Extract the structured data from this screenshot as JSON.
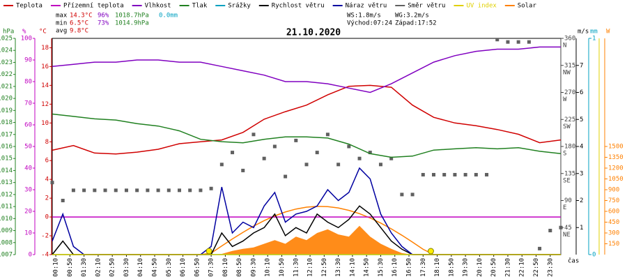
{
  "chart_data": {
    "type": "line",
    "title": "21.10.2020",
    "x_label": "čas",
    "xlim": [
      0,
      1440
    ],
    "xticks": [
      {
        "value": 10,
        "label": "00:10"
      },
      {
        "value": 50,
        "label": "00:50"
      },
      {
        "value": 90,
        "label": "01:30"
      },
      {
        "value": 130,
        "label": "02:10"
      },
      {
        "value": 170,
        "label": "02:50"
      },
      {
        "value": 210,
        "label": "03:30"
      },
      {
        "value": 250,
        "label": "04:10"
      },
      {
        "value": 290,
        "label": "04:50"
      },
      {
        "value": 330,
        "label": "05:30"
      },
      {
        "value": 370,
        "label": "06:10"
      },
      {
        "value": 410,
        "label": "06:50"
      },
      {
        "value": 450,
        "label": "07:30"
      },
      {
        "value": 490,
        "label": "08:10"
      },
      {
        "value": 530,
        "label": "08:50"
      },
      {
        "value": 570,
        "label": "09:30"
      },
      {
        "value": 610,
        "label": "10:10"
      },
      {
        "value": 650,
        "label": "10:50"
      },
      {
        "value": 690,
        "label": "11:30"
      },
      {
        "value": 730,
        "label": "12:10"
      },
      {
        "value": 770,
        "label": "12:50"
      },
      {
        "value": 810,
        "label": "13:30"
      },
      {
        "value": 850,
        "label": "14:10"
      },
      {
        "value": 890,
        "label": "14:50"
      },
      {
        "value": 930,
        "label": "15:30"
      },
      {
        "value": 970,
        "label": "16:10"
      },
      {
        "value": 1010,
        "label": "16:50"
      },
      {
        "value": 1050,
        "label": "17:30"
      },
      {
        "value": 1090,
        "label": "18:10"
      },
      {
        "value": 1130,
        "label": "18:50"
      },
      {
        "value": 1170,
        "label": "19:30"
      },
      {
        "value": 1210,
        "label": "20:10"
      },
      {
        "value": 1250,
        "label": "20:50"
      },
      {
        "value": 1290,
        "label": "21:30"
      },
      {
        "value": 1330,
        "label": "22:10"
      },
      {
        "value": 1370,
        "label": "22:50"
      },
      {
        "value": 1410,
        "label": "23:30"
      }
    ],
    "axes": [
      {
        "id": "pressure",
        "label": "hPa",
        "color": "#208020",
        "side": "left",
        "lim": [
          1007,
          1025
        ],
        "ticks": [
          1007,
          1008,
          1009,
          1010,
          1011,
          1012,
          1013,
          1014,
          1015,
          1016,
          1017,
          1018,
          1019,
          1020,
          1021,
          1022,
          1023,
          1024,
          1025
        ]
      },
      {
        "id": "humidity",
        "label": "%",
        "color": "#c000c0",
        "side": "left",
        "lim": [
          0,
          100
        ],
        "ticks": [
          0,
          10,
          20,
          30,
          40,
          50,
          60,
          70,
          80,
          90,
          100
        ]
      },
      {
        "id": "temp",
        "label": "°C",
        "color": "#d00000",
        "side": "left",
        "lim": [
          -4,
          19
        ],
        "ticks": [
          -4,
          -2,
          0,
          2,
          4,
          6,
          8,
          10,
          12,
          14,
          16,
          18
        ]
      },
      {
        "id": "direction",
        "color": "#404040",
        "side": "right",
        "lim": [
          0,
          360
        ],
        "ticks": [
          45,
          90,
          135,
          180,
          225,
          270,
          315,
          360
        ],
        "tick_names": [
          "NE",
          "E",
          "SE",
          "S",
          "SW",
          "W",
          "NW",
          "N"
        ]
      },
      {
        "id": "wind",
        "label": "m/s",
        "color": "#000000",
        "side": "right",
        "lim": [
          0,
          8
        ],
        "ticks": [
          1,
          2,
          3,
          4,
          5,
          6,
          7
        ]
      },
      {
        "id": "rain",
        "label": "mm",
        "color": "#00a0c0",
        "side": "right",
        "lim": [
          0,
          1
        ],
        "ticks": [
          0,
          1
        ]
      },
      {
        "id": "uv",
        "color": "#e0d000",
        "side": "right",
        "lim": [
          0,
          10
        ],
        "ticks": []
      },
      {
        "id": "solar",
        "label": "W",
        "color": "#ff8000",
        "side": "right",
        "lim": [
          0,
          3000
        ],
        "ticks": [
          150,
          300,
          450,
          600,
          750,
          900,
          1050,
          1200,
          1350,
          1500
        ]
      }
    ],
    "series": [
      {
        "name": "Teplota",
        "color": "#d00000",
        "axis": "temp",
        "style": "line",
        "x": [
          0,
          60,
          120,
          180,
          240,
          300,
          360,
          420,
          480,
          540,
          600,
          660,
          720,
          780,
          840,
          900,
          960,
          1020,
          1080,
          1140,
          1200,
          1260,
          1320,
          1380,
          1440
        ],
        "values": [
          7.1,
          7.6,
          6.8,
          6.7,
          6.9,
          7.2,
          7.8,
          8.0,
          8.2,
          9.0,
          10.4,
          11.2,
          11.9,
          13.0,
          13.9,
          14.0,
          13.8,
          11.9,
          10.6,
          10.0,
          9.7,
          9.3,
          8.8,
          7.9,
          8.2
        ]
      },
      {
        "name": "Přízemní teplota",
        "color": "#c000c0",
        "axis": "temp",
        "style": "line",
        "x": [
          0,
          60,
          120,
          180,
          240,
          300,
          360,
          420,
          480,
          540,
          600,
          660,
          720,
          780,
          840,
          900,
          960,
          1020,
          1080,
          1140,
          1200,
          1260,
          1320,
          1380,
          1440
        ],
        "values": [
          0,
          0,
          0,
          0,
          0,
          0,
          0,
          0,
          0,
          0,
          0,
          0,
          0,
          0,
          0,
          0,
          0,
          0,
          0,
          0,
          0,
          0,
          0,
          0,
          0
        ]
      },
      {
        "name": "Vlhkost",
        "color": "#8000c0",
        "axis": "humidity",
        "style": "line",
        "x": [
          0,
          60,
          120,
          180,
          240,
          300,
          360,
          420,
          480,
          540,
          600,
          660,
          720,
          780,
          840,
          900,
          960,
          1020,
          1080,
          1140,
          1200,
          1260,
          1320,
          1380,
          1440
        ],
        "values": [
          87,
          88,
          89,
          89,
          90,
          90,
          89,
          89,
          87,
          85,
          83,
          80,
          80,
          79,
          77,
          75,
          79,
          84,
          89,
          92,
          94,
          95,
          95,
          96,
          96
        ]
      },
      {
        "name": "Tlak",
        "color": "#208020",
        "axis": "pressure",
        "style": "line",
        "x": [
          0,
          60,
          120,
          180,
          240,
          300,
          360,
          420,
          480,
          540,
          600,
          660,
          720,
          780,
          840,
          900,
          960,
          1020,
          1080,
          1140,
          1200,
          1260,
          1320,
          1380,
          1440
        ],
        "values": [
          1018.7,
          1018.5,
          1018.3,
          1018.2,
          1017.9,
          1017.7,
          1017.3,
          1016.6,
          1016.4,
          1016.3,
          1016.6,
          1016.8,
          1016.8,
          1016.7,
          1016.2,
          1015.4,
          1015.1,
          1015.2,
          1015.7,
          1015.8,
          1015.9,
          1015.8,
          1015.9,
          1015.6,
          1015.4
        ]
      },
      {
        "name": "Srážky",
        "color": "#00a0c0",
        "axis": "rain",
        "style": "line",
        "x": [
          0,
          60,
          120,
          180,
          240,
          300,
          360,
          420,
          480,
          540,
          600,
          660,
          720,
          780,
          840,
          900,
          960,
          1020,
          1080,
          1140,
          1200,
          1260,
          1320,
          1380,
          1440
        ],
        "values": [
          0,
          0,
          0,
          0,
          0,
          0,
          0,
          0,
          0,
          0,
          0,
          0,
          0,
          0,
          0,
          0,
          0,
          0,
          0,
          0,
          0,
          0,
          0,
          0,
          0
        ]
      },
      {
        "name": "Rychlost větru",
        "color": "#000000",
        "axis": "wind",
        "style": "line",
        "x": [
          0,
          30,
          60,
          90,
          120,
          150,
          180,
          210,
          240,
          270,
          300,
          330,
          360,
          390,
          420,
          450,
          480,
          510,
          540,
          570,
          600,
          630,
          660,
          690,
          720,
          750,
          780,
          810,
          840,
          870,
          900,
          930,
          960,
          990,
          1020,
          1050,
          1080,
          1110,
          1140,
          1170,
          1200,
          1230,
          1260,
          1290,
          1320,
          1350,
          1380,
          1410,
          1440
        ],
        "values": [
          0,
          0.5,
          0,
          0,
          0,
          0,
          0,
          0,
          0,
          0,
          0,
          0,
          0,
          0,
          0,
          0,
          0.8,
          0.3,
          0.5,
          0.8,
          1.0,
          1.5,
          0.7,
          1.0,
          0.8,
          1.5,
          1.2,
          1.0,
          1.3,
          1.8,
          1.5,
          1.0,
          0.5,
          0.2,
          0,
          0,
          0,
          0,
          0,
          0,
          0,
          0,
          0,
          0,
          0,
          0,
          0,
          0,
          0
        ]
      },
      {
        "name": "Náraz větru",
        "color": "#0000a0",
        "axis": "wind",
        "style": "line",
        "x": [
          0,
          30,
          60,
          90,
          120,
          150,
          180,
          210,
          240,
          270,
          300,
          330,
          360,
          390,
          420,
          450,
          480,
          510,
          540,
          570,
          600,
          630,
          660,
          690,
          720,
          750,
          780,
          810,
          840,
          870,
          900,
          930,
          960,
          990,
          1020,
          1050,
          1080,
          1110,
          1140,
          1170,
          1200,
          1230,
          1260,
          1290,
          1320,
          1350,
          1380,
          1410,
          1440
        ],
        "values": [
          0.5,
          1.5,
          0.3,
          0,
          0,
          0,
          0,
          0,
          0,
          0,
          0,
          0,
          0,
          0,
          0,
          0.3,
          2.5,
          0.8,
          1.2,
          1.0,
          1.8,
          2.3,
          1.2,
          1.5,
          1.6,
          1.8,
          2.4,
          2.0,
          2.3,
          3.2,
          2.8,
          1.5,
          0.8,
          0.3,
          0,
          0,
          0,
          0,
          0,
          0,
          0,
          0,
          0,
          0,
          0,
          0,
          0,
          0,
          0
        ]
      },
      {
        "name": "Směr větru",
        "color": "#606060",
        "axis": "direction",
        "style": "scatter",
        "x": [
          0,
          30,
          60,
          90,
          120,
          150,
          180,
          210,
          240,
          270,
          300,
          330,
          360,
          390,
          420,
          450,
          480,
          510,
          540,
          570,
          600,
          630,
          660,
          690,
          720,
          750,
          780,
          810,
          840,
          870,
          900,
          930,
          960,
          990,
          1020,
          1050,
          1080,
          1110,
          1140,
          1170,
          1200,
          1230,
          1260,
          1290,
          1320,
          1350,
          1380,
          1410,
          1440
        ],
        "values": [
          120,
          90,
          107,
          107,
          107,
          107,
          107,
          107,
          107,
          107,
          107,
          107,
          107,
          107,
          107,
          110,
          150,
          170,
          140,
          200,
          160,
          180,
          130,
          190,
          150,
          170,
          200,
          150,
          180,
          160,
          170,
          150,
          160,
          100,
          100,
          133,
          133,
          133,
          133,
          133,
          133,
          133,
          358,
          354,
          354,
          354,
          10,
          40,
          45
        ]
      },
      {
        "name": "UV index",
        "color": "#e0d000",
        "axis": "uv",
        "style": "line",
        "x": [
          0,
          60,
          120,
          180,
          240,
          300,
          360,
          420,
          480,
          540,
          600,
          660,
          720,
          780,
          840,
          900,
          960,
          1020,
          1080,
          1140,
          1200,
          1260,
          1320,
          1380,
          1440
        ],
        "values": [
          0,
          0,
          0,
          0,
          0,
          0,
          0,
          0,
          0,
          0,
          0,
          0,
          0,
          0,
          0,
          0,
          0,
          0,
          0,
          0,
          0,
          0,
          0,
          0,
          0
        ]
      },
      {
        "name": "Solar",
        "color": "#ff8000",
        "axis": "solar",
        "style": "area",
        "x": [
          0,
          30,
          60,
          90,
          120,
          150,
          180,
          210,
          240,
          270,
          300,
          330,
          360,
          390,
          420,
          450,
          480,
          510,
          540,
          570,
          600,
          630,
          660,
          690,
          720,
          750,
          780,
          810,
          840,
          870,
          900,
          930,
          960,
          990,
          1020,
          1050,
          1080,
          1110,
          1140,
          1170,
          1200,
          1230,
          1260,
          1290,
          1320,
          1350,
          1380,
          1410,
          1440
        ],
        "values": [
          0,
          0,
          0,
          0,
          0,
          0,
          0,
          0,
          0,
          0,
          0,
          0,
          0,
          0,
          0,
          0,
          10,
          50,
          80,
          100,
          150,
          200,
          150,
          250,
          200,
          300,
          350,
          280,
          250,
          400,
          250,
          150,
          80,
          20,
          0,
          0,
          0,
          0,
          0,
          0,
          0,
          0,
          0,
          0,
          0,
          0,
          0,
          0,
          0
        ],
        "clear_sky": [
          0,
          0,
          0,
          0,
          0,
          0,
          0,
          0,
          0,
          0,
          0,
          0,
          0,
          0,
          0,
          20,
          120,
          217,
          309,
          395,
          471,
          537,
          591,
          632,
          658,
          669,
          666,
          647,
          614,
          568,
          508,
          437,
          357,
          268,
          173,
          74,
          0,
          0,
          0,
          0,
          0,
          0,
          0,
          0,
          0,
          0,
          0,
          0,
          0
        ]
      }
    ],
    "sun_markers": [
      444,
      1072
    ],
    "stats": [
      {
        "label": "max",
        "temp": "14.3°C",
        "humidity": "96%",
        "pressure": "1018.7hPa",
        "rain": "0.0mm"
      },
      {
        "label": "min",
        "temp": "6.5°C",
        "humidity": "73%",
        "pressure": "1014.9hPa"
      },
      {
        "label": "avg",
        "temp": "9.8°C"
      }
    ],
    "wind_info": {
      "ws": "WS:1.8m/s",
      "wg": "WG:3.2m/s",
      "sunrise": "Východ:07:24",
      "sunset": "Západ:17:52"
    }
  }
}
